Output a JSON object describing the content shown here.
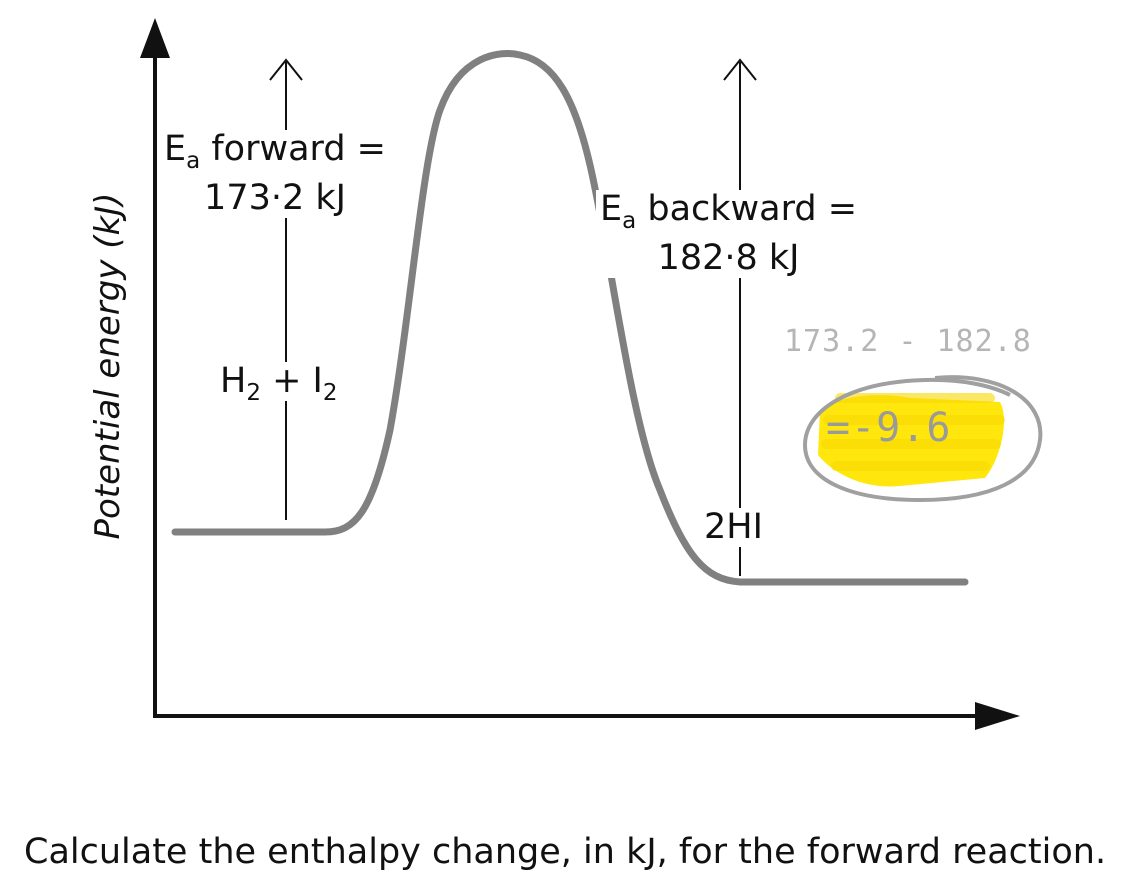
{
  "axes": {
    "y_label": "Potential energy (kJ)"
  },
  "forward": {
    "ea_symbol": "E",
    "ea_sub": "a",
    "ea_rest": " forward =",
    "value": "173·2 kJ"
  },
  "backward": {
    "ea_symbol": "E",
    "ea_sub": "a",
    "ea_rest": " backward =",
    "value": "182·8 kJ"
  },
  "reactants": {
    "h": "H",
    "h_sub": "2",
    "plus": " + I",
    "i_sub": "2"
  },
  "products": {
    "label": "2HI"
  },
  "annotation": {
    "calc": "173.2 - 182.8",
    "answer": "=-9.6",
    "highlight_color": "#ffe600",
    "ink_color": "#b5b5b5"
  },
  "colors": {
    "curve": "#808080",
    "axes": "#111111"
  },
  "question": "Calculate the enthalpy change, in kJ, for the forward reaction."
}
